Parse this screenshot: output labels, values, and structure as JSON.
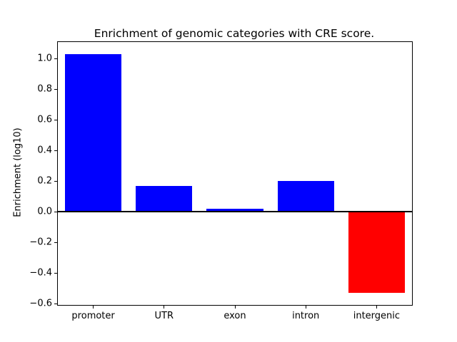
{
  "chart_data": {
    "type": "bar",
    "title": "Enrichment of genomic categories with CRE score.",
    "xlabel": "",
    "ylabel": "Enrichment (log10)",
    "categories": [
      "promoter",
      "UTR",
      "exon",
      "intron",
      "intergenic"
    ],
    "values": [
      1.03,
      0.17,
      0.02,
      0.2,
      -0.53
    ],
    "bar_colors": [
      "#0000ff",
      "#0000ff",
      "#0000ff",
      "#0000ff",
      "#ff0000"
    ],
    "positive_color": "#0000ff",
    "negative_color": "#ff0000",
    "ylim": [
      -0.608,
      1.108
    ],
    "yticks": [
      1.0,
      0.8,
      0.6,
      0.4,
      0.2,
      0.0,
      -0.2,
      -0.4,
      -0.6
    ],
    "ytick_labels": [
      "1.0",
      "0.8",
      "0.6",
      "0.4",
      "0.2",
      "0.0",
      "−0.2",
      "−0.4",
      "−0.6"
    ],
    "bar_width_fraction": 0.8,
    "grid": false,
    "legend": "none",
    "zero_line": true,
    "background_color": "#ffffff"
  }
}
